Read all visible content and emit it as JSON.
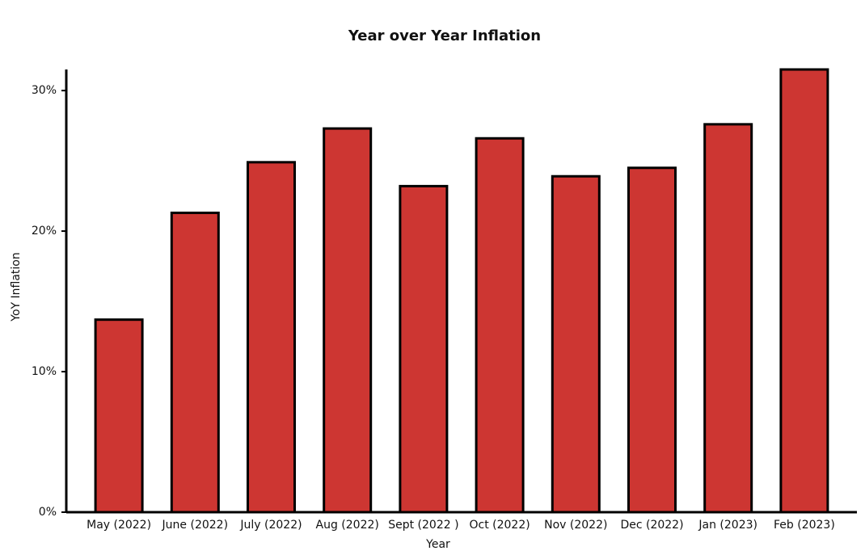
{
  "chart_data": {
    "type": "bar",
    "title": "Year over Year Inflation",
    "x_label": "Year",
    "y_label": "YoY Inflation",
    "categories": [
      "May (2022)",
      "June (2022)",
      "July (2022)",
      "Aug (2022)",
      "Sept (2022 )",
      "Oct (2022)",
      "Nov (2022)",
      "Dec (2022)",
      "Jan (2023)",
      "Feb (2023)"
    ],
    "values": [
      13.7,
      21.3,
      24.9,
      27.3,
      23.2,
      26.6,
      23.9,
      24.5,
      27.6,
      31.5
    ],
    "color": "#cd3632",
    "ylim": [
      0,
      31.5
    ],
    "yticks": [
      {
        "value": 0,
        "label": "0%"
      },
      {
        "value": 10,
        "label": "10%"
      },
      {
        "value": 20,
        "label": "20%"
      },
      {
        "value": 30,
        "label": "30%"
      }
    ],
    "grid": false
  }
}
